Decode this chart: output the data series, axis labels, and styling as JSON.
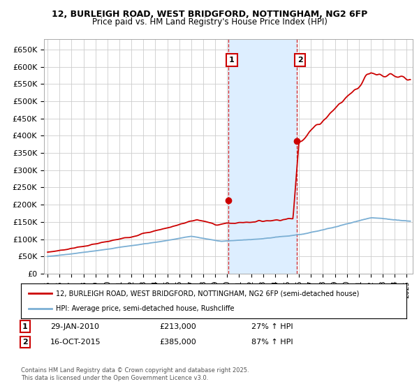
{
  "title_line1": "12, BURLEIGH ROAD, WEST BRIDGFORD, NOTTINGHAM, NG2 6FP",
  "title_line2": "Price paid vs. HM Land Registry's House Price Index (HPI)",
  "ylim": [
    0,
    680000
  ],
  "yticks": [
    0,
    50000,
    100000,
    150000,
    200000,
    250000,
    300000,
    350000,
    400000,
    450000,
    500000,
    550000,
    600000,
    650000
  ],
  "ytick_labels": [
    "£0",
    "£50K",
    "£100K",
    "£150K",
    "£200K",
    "£250K",
    "£300K",
    "£350K",
    "£400K",
    "£450K",
    "£500K",
    "£550K",
    "£600K",
    "£650K"
  ],
  "xlim_start": 1994.7,
  "xlim_end": 2025.5,
  "xtick_years": [
    1995,
    1996,
    1997,
    1998,
    1999,
    2000,
    2001,
    2002,
    2003,
    2004,
    2005,
    2006,
    2007,
    2008,
    2009,
    2010,
    2011,
    2012,
    2013,
    2014,
    2015,
    2016,
    2017,
    2018,
    2019,
    2020,
    2021,
    2022,
    2023,
    2024,
    2025
  ],
  "transaction1_x": 2010.08,
  "transaction1_y": 213000,
  "transaction1_label": "1",
  "transaction1_date": "29-JAN-2010",
  "transaction1_price": "£213,000",
  "transaction1_hpi": "27% ↑ HPI",
  "transaction2_x": 2015.79,
  "transaction2_y": 385000,
  "transaction2_label": "2",
  "transaction2_date": "16-OCT-2015",
  "transaction2_price": "£385,000",
  "transaction2_hpi": "87% ↑ HPI",
  "red_line_color": "#cc0000",
  "blue_line_color": "#7bafd4",
  "shade_color": "#ddeeff",
  "grid_color": "#cccccc",
  "legend_line1": "12, BURLEIGH ROAD, WEST BRIDGFORD, NOTTINGHAM, NG2 6FP (semi-detached house)",
  "legend_line2": "HPI: Average price, semi-detached house, Rushcliffe",
  "footnote": "Contains HM Land Registry data © Crown copyright and database right 2025.\nThis data is licensed under the Open Government Licence v3.0.",
  "background_color": "#ffffff"
}
